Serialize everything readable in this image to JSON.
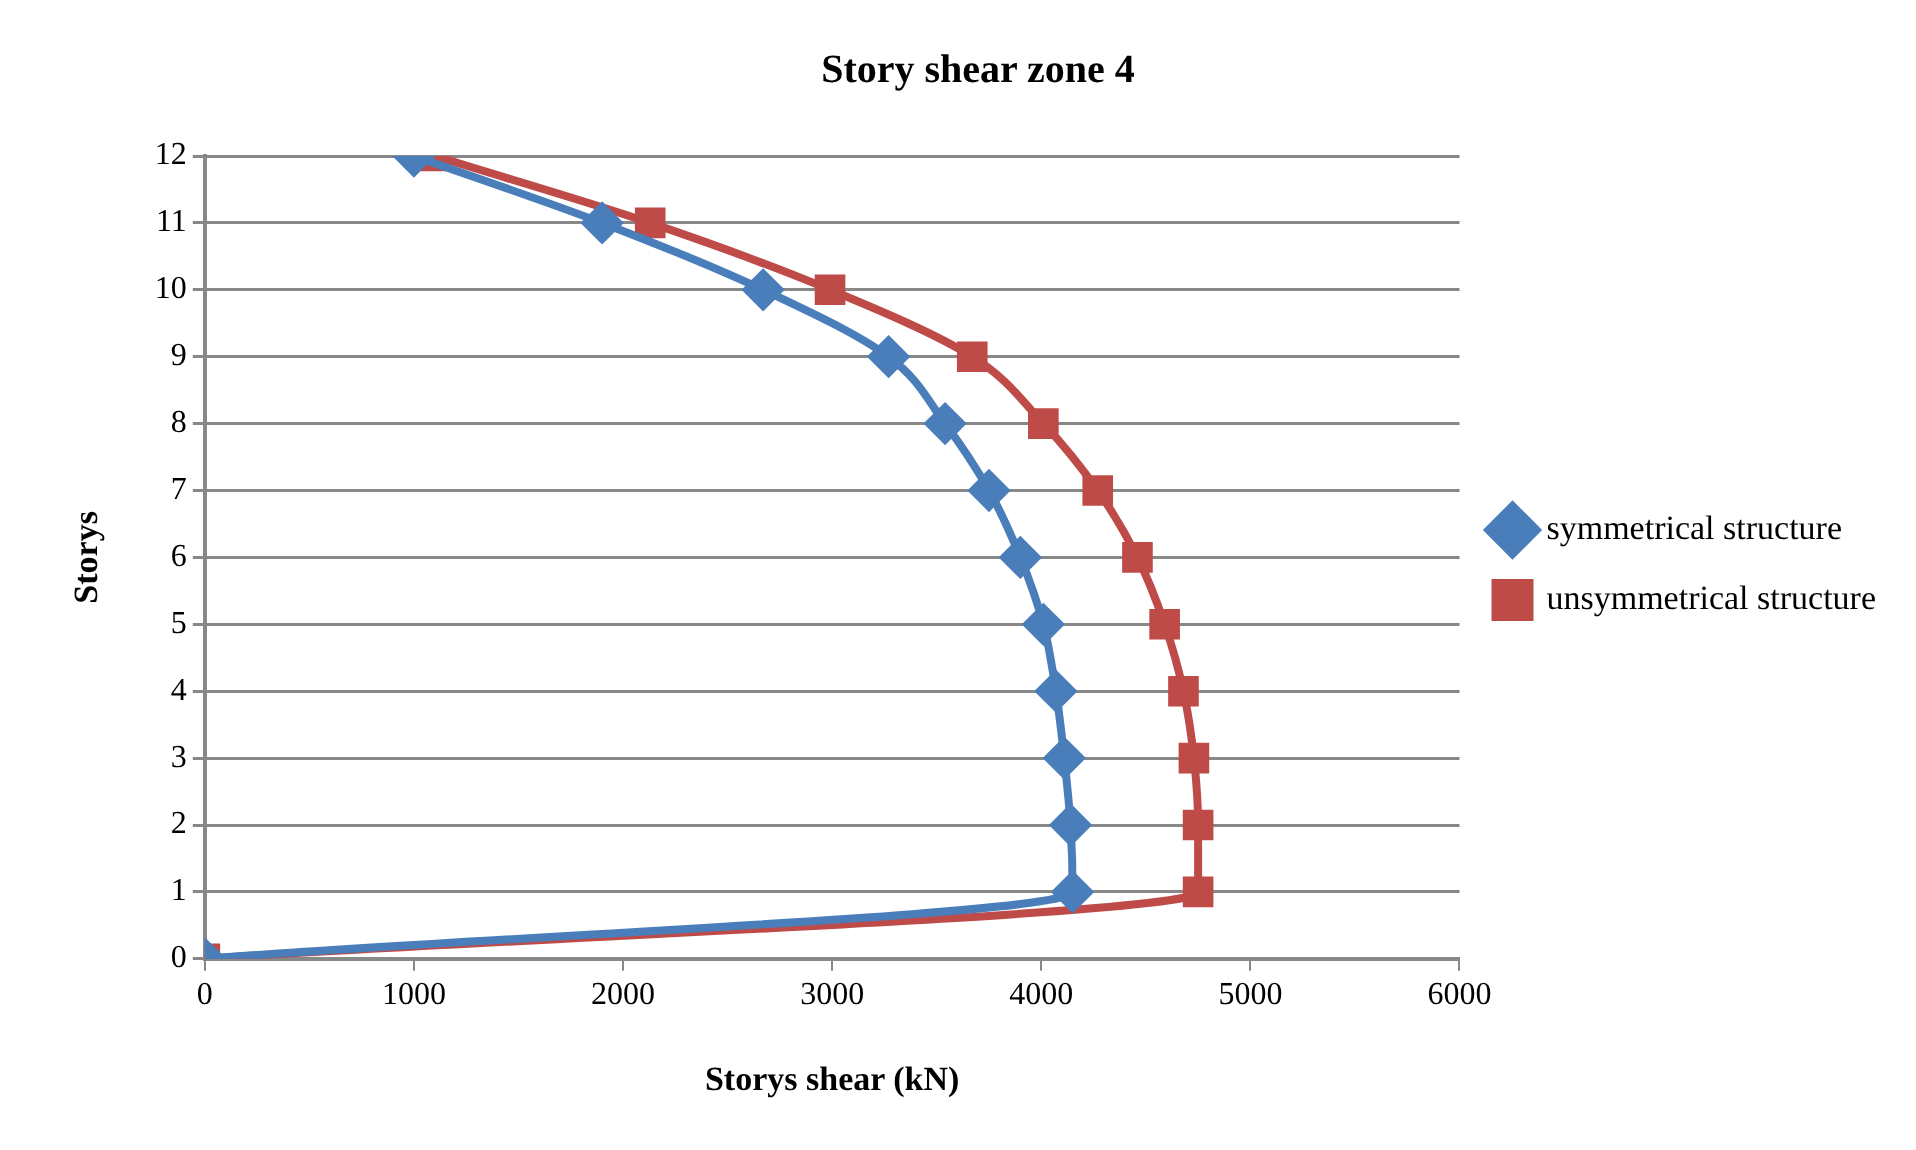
{
  "chart_data": {
    "type": "line",
    "title": "Story shear zone 4",
    "xlabel": "Storys shear (kN)",
    "ylabel": "Storys",
    "xlim": [
      0,
      6000
    ],
    "xticks": [
      0,
      1000,
      2000,
      3000,
      4000,
      5000,
      6000
    ],
    "ylim": [
      0,
      12
    ],
    "yticks": [
      0,
      1,
      2,
      3,
      4,
      5,
      6,
      7,
      8,
      9,
      10,
      11,
      12
    ],
    "grid": "y",
    "legend": "right",
    "series": [
      {
        "name": "symmetrical structure",
        "color": "#4a7ebb",
        "marker": "diamond",
        "x": [
          0,
          4150,
          4140,
          4110,
          4070,
          4010,
          3900,
          3750,
          3540,
          3270,
          2670,
          1900,
          1000
        ],
        "values": [
          0,
          1,
          2,
          3,
          4,
          5,
          6,
          7,
          8,
          9,
          10,
          11,
          12
        ]
      },
      {
        "name": "unsymmetrical structure",
        "color": "#be4b48",
        "marker": "square",
        "x": [
          0,
          4750,
          4750,
          4730,
          4680,
          4590,
          4460,
          4270,
          4010,
          3670,
          2990,
          2130,
          1100
        ],
        "values": [
          0,
          1,
          2,
          3,
          4,
          5,
          6,
          7,
          8,
          9,
          10,
          11,
          12
        ]
      }
    ]
  }
}
